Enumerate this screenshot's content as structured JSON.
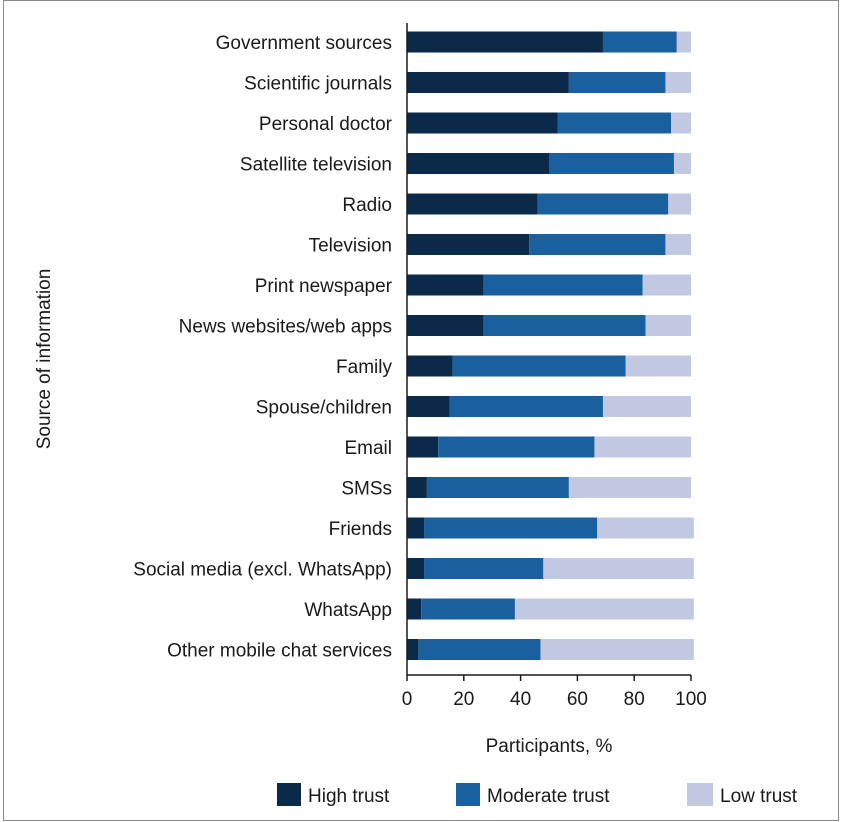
{
  "chart_data": {
    "type": "bar",
    "orientation": "horizontal",
    "stacked": true,
    "title": "",
    "xlabel": "Participants, %",
    "ylabel": "Source of information",
    "xlim": [
      0,
      100
    ],
    "xticks": [
      0,
      20,
      40,
      60,
      80,
      100
    ],
    "grid": false,
    "legend_position": "bottom",
    "categories": [
      "Government sources",
      "Scientific journals",
      "Personal doctor",
      "Satellite television",
      "Radio",
      "Television",
      "Print newspaper",
      "News websites/web apps",
      "Family",
      "Spouse/children",
      "Email",
      "SMSs",
      "Friends",
      "Social media (excl. WhatsApp)",
      "WhatsApp",
      "Other mobile chat services"
    ],
    "series": [
      {
        "name": "High trust",
        "color": "#0b2a4a",
        "values": [
          69,
          57,
          53,
          50,
          46,
          43,
          27,
          27,
          16,
          15,
          11,
          7,
          6,
          6,
          5,
          4
        ]
      },
      {
        "name": "Moderate trust",
        "color": "#1a5f9e",
        "values": [
          26,
          34,
          40,
          44,
          46,
          48,
          56,
          57,
          61,
          54,
          55,
          50,
          61,
          42,
          33,
          43
        ]
      },
      {
        "name": "Low trust",
        "color": "#c2c8e2",
        "values": [
          5,
          9,
          7,
          6,
          8,
          9,
          17,
          16,
          23,
          31,
          34,
          43,
          34,
          53,
          63,
          54
        ]
      }
    ]
  }
}
